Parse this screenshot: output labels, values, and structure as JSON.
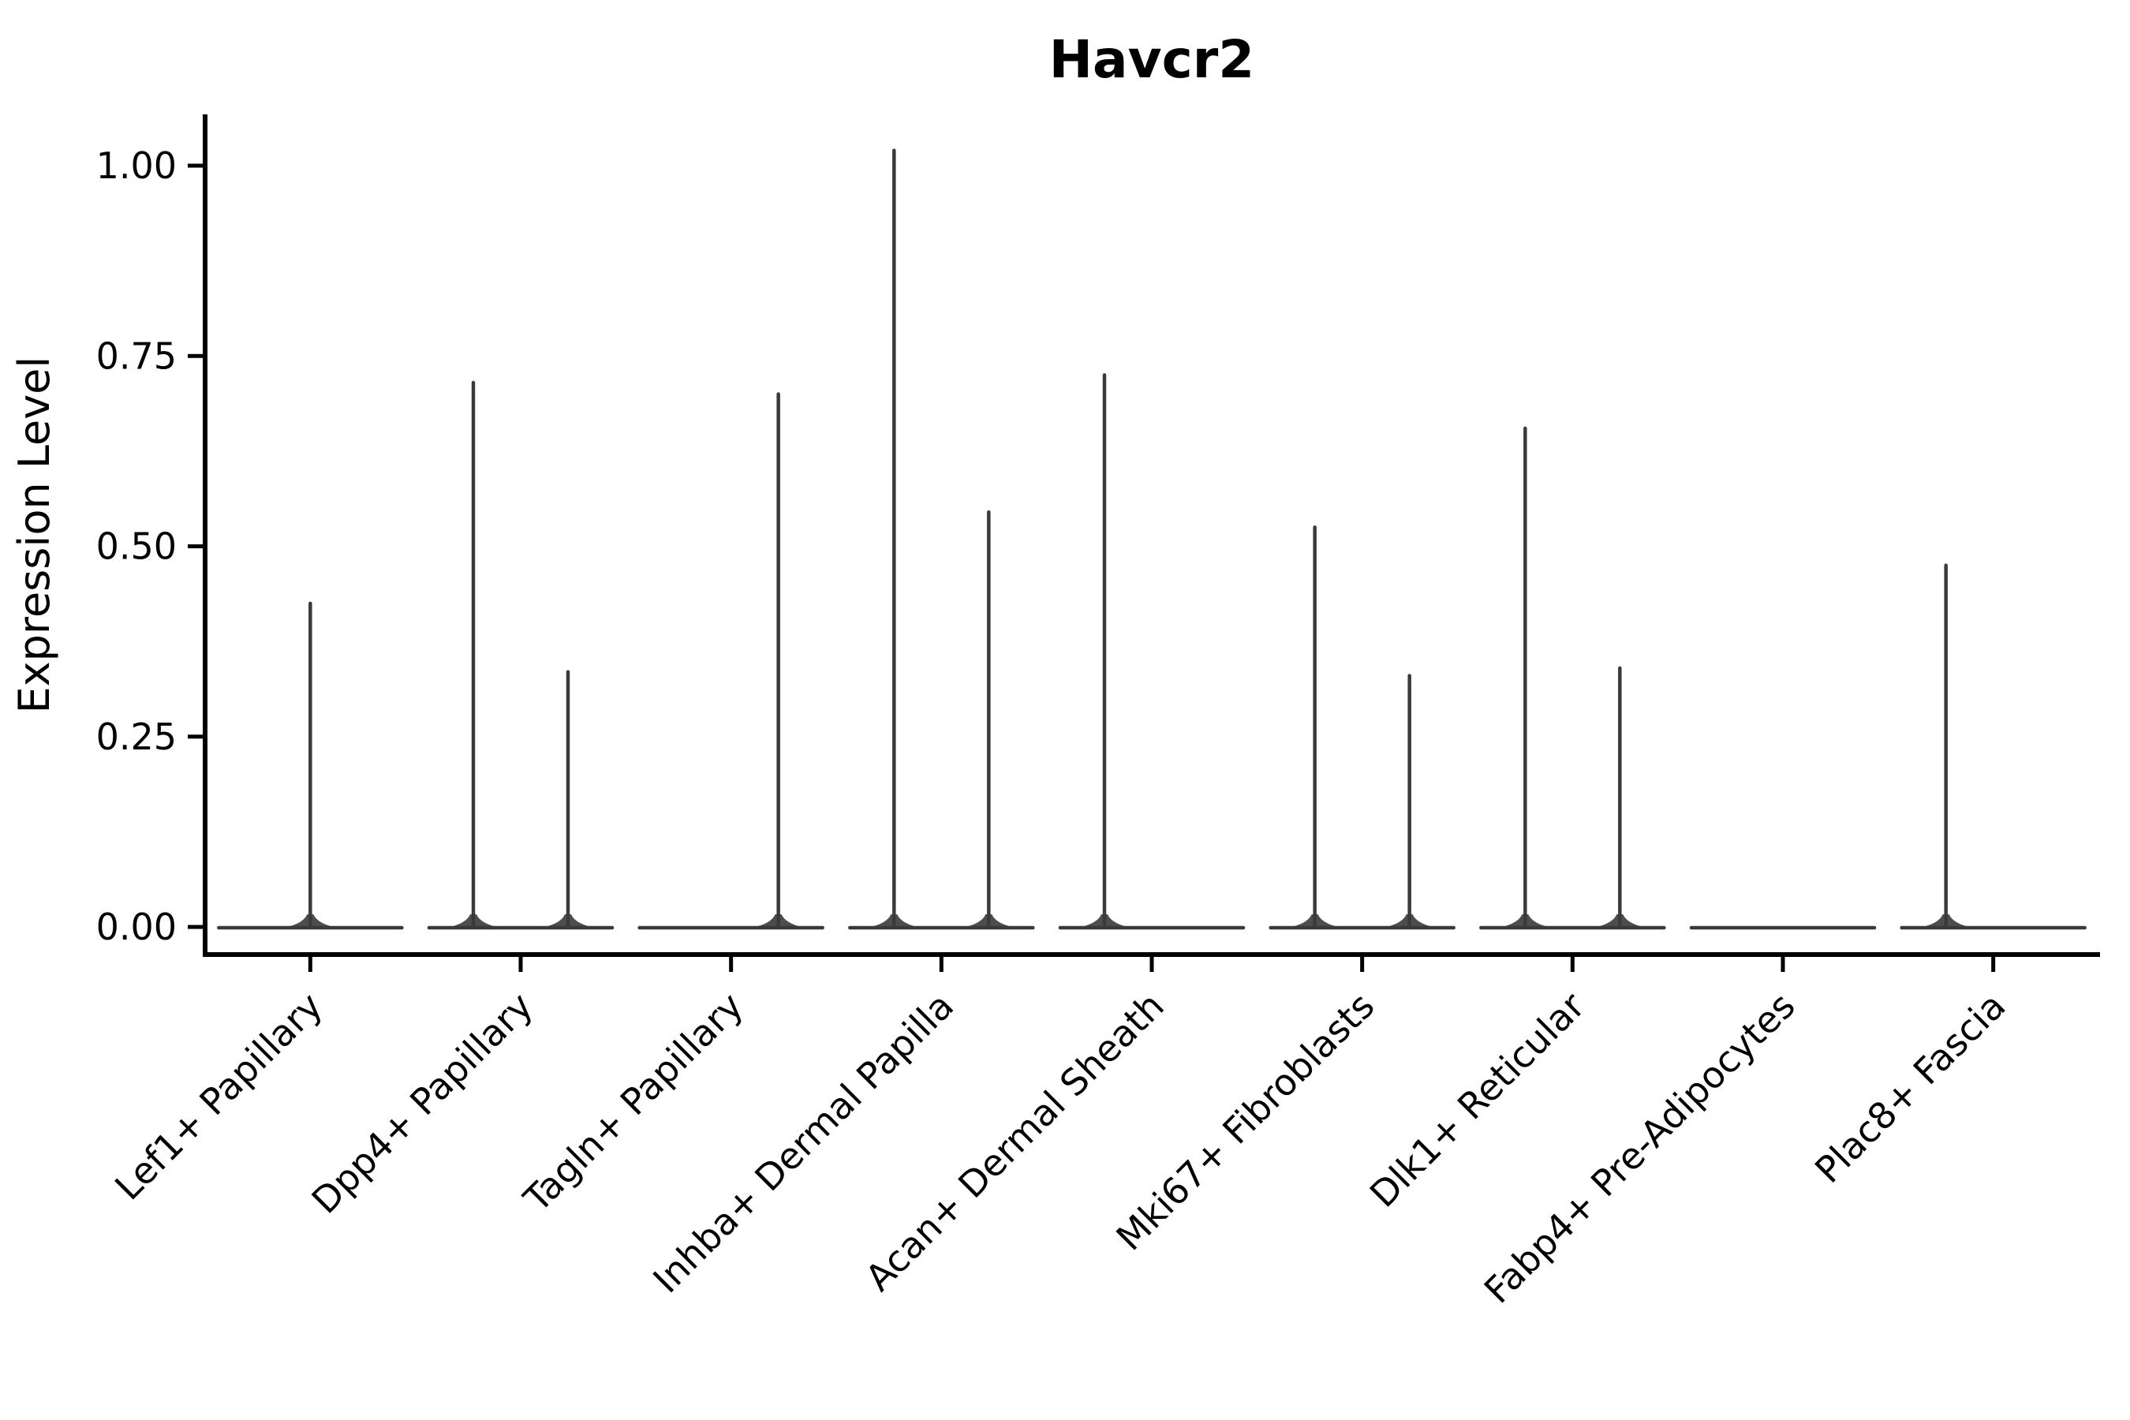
{
  "chart_data": {
    "type": "violin",
    "title": "Havcr2",
    "ylabel": "Expression Level",
    "xlabel": "",
    "legend": "none",
    "grid": "off",
    "y_axis": {
      "tick_values": [
        0.0,
        0.25,
        0.5,
        0.75,
        1.0
      ],
      "tick_labels": [
        "0.00",
        "0.25",
        "0.50",
        "0.75",
        "1.00"
      ],
      "range": [
        -0.036,
        1.067
      ]
    },
    "categories": [
      "Lef1+ Papillary",
      "Dpp4+ Papillary",
      "Tagln+ Papillary",
      "Inhba+ Dermal Papilla",
      "Acan+ Dermal Sheath",
      "Mki67+ Fibroblasts",
      "Dlk1+ Reticular",
      "Fabp4+ Pre-Adipocytes",
      "Plac8+ Fascia"
    ],
    "violins": [
      {
        "category": "Lef1+ Papillary",
        "slots": [
          {
            "position": "center",
            "max": 0.425
          }
        ]
      },
      {
        "category": "Dpp4+ Papillary",
        "slots": [
          {
            "position": "left",
            "max": 0.715
          },
          {
            "position": "right",
            "max": 0.335
          }
        ]
      },
      {
        "category": "Tagln+ Papillary",
        "slots": [
          {
            "position": "left",
            "max": 0
          },
          {
            "position": "right",
            "max": 0.7
          }
        ]
      },
      {
        "category": "Inhba+ Dermal Papilla",
        "slots": [
          {
            "position": "left",
            "max": 1.02
          },
          {
            "position": "right",
            "max": 0.545
          }
        ]
      },
      {
        "category": "Acan+ Dermal Sheath",
        "slots": [
          {
            "position": "left",
            "max": 0.725
          },
          {
            "position": "right",
            "max": 0
          }
        ]
      },
      {
        "category": "Mki67+ Fibroblasts",
        "slots": [
          {
            "position": "left",
            "max": 0.525
          },
          {
            "position": "right",
            "max": 0.33
          }
        ]
      },
      {
        "category": "Dlk1+ Reticular",
        "slots": [
          {
            "position": "left",
            "max": 0.655
          },
          {
            "position": "right",
            "max": 0.34
          }
        ]
      },
      {
        "category": "Fabp4+ Pre-Adipocytes",
        "slots": [
          {
            "position": "left",
            "max": 0
          },
          {
            "position": "right",
            "max": 0
          }
        ]
      },
      {
        "category": "Plac8+ Fascia",
        "slots": [
          {
            "position": "left",
            "max": 0.475
          },
          {
            "position": "right",
            "max": 0
          }
        ]
      }
    ],
    "colors": {
      "violin": "#3a3a3a",
      "axis": "#000000",
      "text": "#000000",
      "background": "#ffffff"
    }
  }
}
